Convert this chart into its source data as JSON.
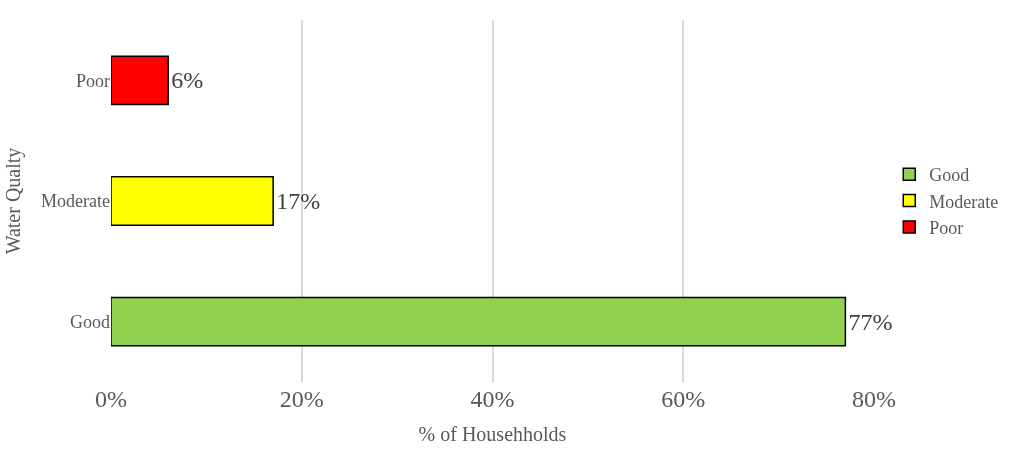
{
  "chart_data": {
    "type": "bar",
    "orientation": "horizontal",
    "stacked": true,
    "ylabel": "Water Qualty",
    "xlabel": "% of Househholds",
    "categories": [
      "Poor",
      "Moderate",
      "Good"
    ],
    "series": [
      {
        "name": "Good",
        "color": "#92d050",
        "values": [
          null,
          null,
          77
        ],
        "value_labels": [
          null,
          null,
          "77%"
        ]
      },
      {
        "name": "Moderate",
        "color": "#ffff00",
        "values": [
          null,
          17,
          null
        ],
        "value_labels": [
          null,
          "17%",
          null
        ]
      },
      {
        "name": "Poor",
        "color": "#ff0000",
        "values": [
          6,
          null,
          null
        ],
        "value_labels": [
          "6%",
          null,
          null
        ]
      }
    ],
    "xlim": [
      0,
      80
    ],
    "xticks": [
      {
        "value": 0,
        "label": "0%"
      },
      {
        "value": 20,
        "label": "20%"
      },
      {
        "value": 40,
        "label": "40%"
      },
      {
        "value": 60,
        "label": "60%"
      },
      {
        "value": 80,
        "label": "80%"
      }
    ],
    "grid": "x",
    "legend": "right"
  }
}
